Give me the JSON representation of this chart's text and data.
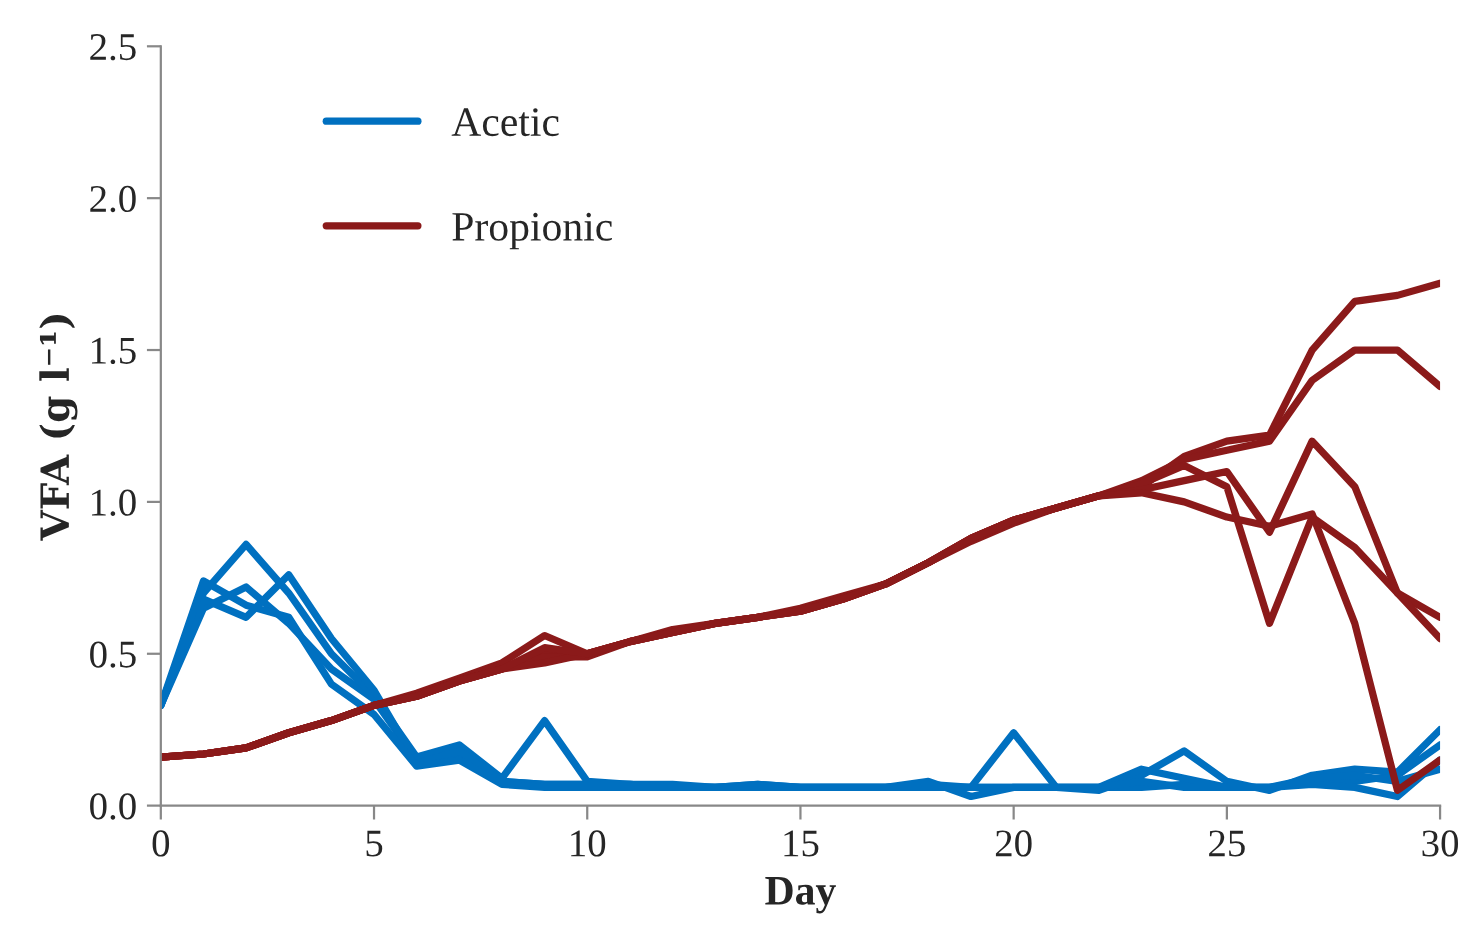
{
  "chart_data": {
    "type": "line",
    "xlabel": "Day",
    "ylabel": "VFA (g l⁻¹)",
    "x": [
      0,
      1,
      2,
      3,
      4,
      5,
      6,
      7,
      8,
      9,
      10,
      11,
      12,
      13,
      14,
      15,
      16,
      17,
      18,
      19,
      20,
      21,
      22,
      23,
      24,
      25,
      26,
      27,
      28,
      29,
      30
    ],
    "xlim": [
      0,
      30
    ],
    "xticks": [
      0,
      5,
      10,
      15,
      20,
      25,
      30
    ],
    "ylim": [
      0,
      2.5
    ],
    "yticks": [
      {
        "value": 0,
        "label": "0.0"
      },
      {
        "value": 0.5,
        "label": "0.5"
      },
      {
        "value": 1,
        "label": "1.0"
      },
      {
        "value": 1.5,
        "label": "1.5"
      },
      {
        "value": 2,
        "label": "2.0"
      },
      {
        "value": 2.5,
        "label": "2.5"
      }
    ],
    "grid": false,
    "legend": "top left",
    "marker": "none",
    "line_style": "solid",
    "series": [
      {
        "name": "Acetic",
        "color": "#0070c0",
        "values": [
          0.33,
          0.65,
          0.72,
          0.6,
          0.45,
          0.35,
          0.15,
          0.17,
          0.08,
          0.07,
          0.07,
          0.07,
          0.06,
          0.06,
          0.07,
          0.06,
          0.06,
          0.06,
          0.06,
          0.06,
          0.06,
          0.06,
          0.06,
          0.06,
          0.07,
          0.06,
          0.06,
          0.08,
          0.08,
          0.1,
          0.2
        ]
      },
      {
        "color": "#0070c0",
        "values": [
          0.33,
          0.7,
          0.86,
          0.7,
          0.5,
          0.36,
          0.16,
          0.2,
          0.09,
          0.28,
          0.08,
          0.07,
          0.07,
          0.06,
          0.07,
          0.06,
          0.06,
          0.06,
          0.07,
          0.06,
          0.24,
          0.06,
          0.05,
          0.1,
          0.18,
          0.08,
          0.05,
          0.1,
          0.12,
          0.11,
          0.25
        ]
      },
      {
        "color": "#0070c0",
        "values": [
          0.33,
          0.68,
          0.62,
          0.76,
          0.55,
          0.38,
          0.14,
          0.18,
          0.08,
          0.07,
          0.07,
          0.07,
          0.06,
          0.06,
          0.06,
          0.06,
          0.06,
          0.06,
          0.08,
          0.03,
          0.06,
          0.06,
          0.06,
          0.12,
          0.09,
          0.06,
          0.06,
          0.07,
          0.06,
          0.03,
          0.15
        ]
      },
      {
        "color": "#0070c0",
        "values": [
          0.33,
          0.74,
          0.66,
          0.62,
          0.4,
          0.3,
          0.13,
          0.15,
          0.07,
          0.06,
          0.06,
          0.06,
          0.06,
          0.06,
          0.06,
          0.06,
          0.06,
          0.06,
          0.06,
          0.06,
          0.06,
          0.06,
          0.06,
          0.08,
          0.06,
          0.06,
          0.06,
          0.09,
          0.1,
          0.08,
          0.12
        ]
      },
      {
        "name": "Propionic",
        "color": "#8b1a1a",
        "values": [
          0.16,
          0.17,
          0.19,
          0.24,
          0.28,
          0.33,
          0.36,
          0.41,
          0.45,
          0.5,
          0.5,
          0.54,
          0.57,
          0.6,
          0.62,
          0.64,
          0.68,
          0.73,
          0.8,
          0.88,
          0.94,
          0.98,
          1.02,
          1.05,
          1.15,
          1.2,
          1.22,
          1.5,
          1.66,
          1.68,
          1.72
        ]
      },
      {
        "color": "#8b1a1a",
        "values": [
          0.16,
          0.17,
          0.19,
          0.24,
          0.28,
          0.33,
          0.37,
          0.42,
          0.47,
          0.56,
          0.5,
          0.54,
          0.58,
          0.6,
          0.62,
          0.65,
          0.69,
          0.73,
          0.8,
          0.87,
          0.93,
          0.98,
          1.02,
          1.07,
          1.14,
          1.17,
          1.2,
          1.4,
          1.5,
          1.5,
          1.38
        ]
      },
      {
        "color": "#8b1a1a",
        "values": [
          0.16,
          0.17,
          0.19,
          0.24,
          0.28,
          0.33,
          0.36,
          0.41,
          0.45,
          0.49,
          0.49,
          0.54,
          0.57,
          0.6,
          0.62,
          0.64,
          0.68,
          0.73,
          0.8,
          0.88,
          0.94,
          0.98,
          1.02,
          1.06,
          1.12,
          1.05,
          0.6,
          0.95,
          0.85,
          0.7,
          0.62
        ]
      },
      {
        "color": "#8b1a1a",
        "values": [
          0.16,
          0.17,
          0.19,
          0.24,
          0.28,
          0.33,
          0.36,
          0.41,
          0.45,
          0.47,
          0.5,
          0.54,
          0.57,
          0.6,
          0.62,
          0.64,
          0.68,
          0.73,
          0.8,
          0.88,
          0.94,
          0.98,
          1.02,
          1.04,
          1.07,
          1.1,
          0.9,
          1.2,
          1.05,
          0.7,
          0.55
        ]
      },
      {
        "color": "#8b1a1a",
        "values": [
          0.16,
          0.17,
          0.19,
          0.24,
          0.28,
          0.33,
          0.36,
          0.41,
          0.45,
          0.52,
          0.5,
          0.54,
          0.57,
          0.6,
          0.62,
          0.64,
          0.68,
          0.73,
          0.8,
          0.88,
          0.94,
          0.98,
          1.02,
          1.03,
          1.0,
          0.95,
          0.92,
          0.96,
          0.6,
          0.05,
          0.15
        ]
      }
    ]
  }
}
